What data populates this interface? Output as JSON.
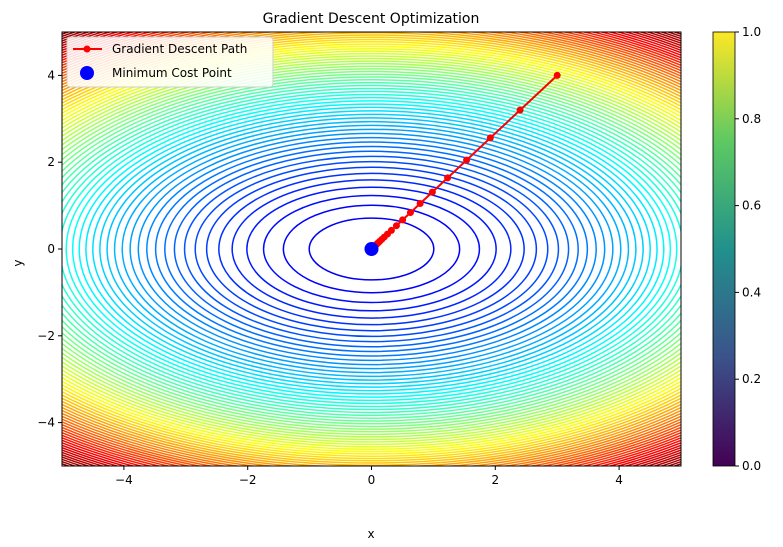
{
  "chart_data": {
    "type": "contour",
    "title": "Gradient Descent Optimization",
    "xlabel": "x",
    "ylabel": "y",
    "xlim": [
      -5,
      5
    ],
    "ylim": [
      -5,
      5
    ],
    "x_ticks": [
      -4,
      -2,
      0,
      2,
      4
    ],
    "y_ticks": [
      -4,
      -2,
      0,
      2,
      4
    ],
    "x_tick_labels": [
      "−4",
      "−2",
      "0",
      "2",
      "4"
    ],
    "y_tick_labels": [
      "−4",
      "−2",
      "0",
      "2",
      "4"
    ],
    "cost_function": "x^2 + 2*y^2",
    "colormap": "jet",
    "colorbar": {
      "colormap": "viridis",
      "range": [
        0,
        1
      ],
      "ticks": [
        0.0,
        0.2,
        0.4,
        0.6,
        0.8,
        1.0
      ],
      "tick_labels": [
        "0.0",
        "0.2",
        "0.4",
        "0.6",
        "0.8",
        "1.0"
      ]
    },
    "legend_position": "top-left",
    "series": [
      {
        "name": "Gradient Descent Path",
        "type": "line",
        "color": "#ff0000",
        "marker": "circle",
        "x": [
          3.0,
          2.4,
          1.92,
          1.536,
          1.229,
          0.983,
          0.786,
          0.629,
          0.503,
          0.403,
          0.322,
          0.258,
          0.206,
          0.165,
          0.132,
          0.106,
          0.084,
          0.068,
          0.054,
          0.043,
          0.035,
          0.028,
          0.022,
          0.018,
          0.014
        ],
        "y": [
          4.0,
          3.2,
          2.56,
          2.048,
          1.638,
          1.311,
          1.049,
          0.839,
          0.671,
          0.537,
          0.429,
          0.344,
          0.275,
          0.22,
          0.176,
          0.141,
          0.113,
          0.09,
          0.072,
          0.058,
          0.046,
          0.037,
          0.03,
          0.024,
          0.019
        ]
      },
      {
        "name": "Minimum Cost Point",
        "type": "scatter",
        "color": "#0000ff",
        "x": [
          0
        ],
        "y": [
          0
        ]
      }
    ]
  }
}
